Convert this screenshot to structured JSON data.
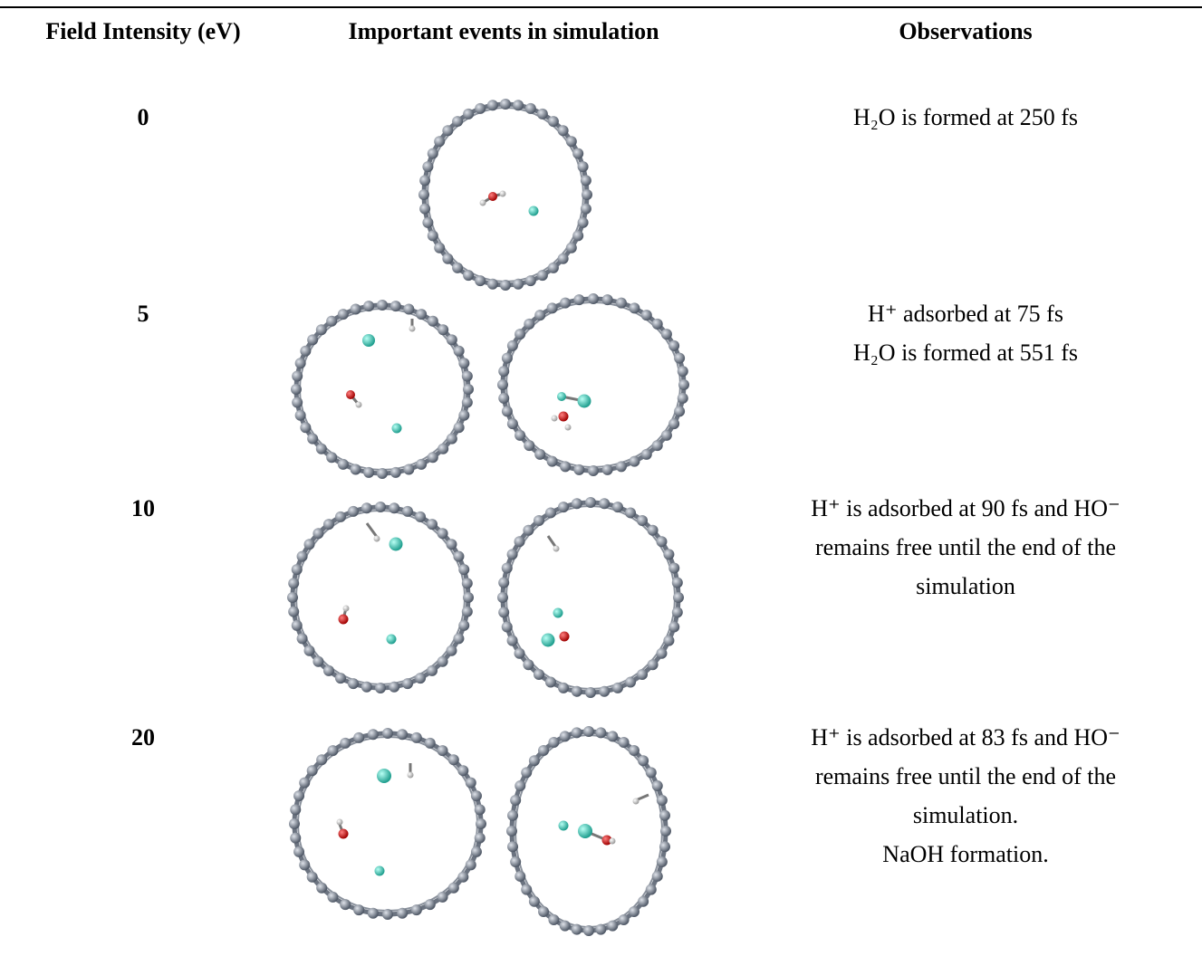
{
  "table": {
    "header": [
      "Field Intensity (eV)",
      "Important events in simulation",
      "Observations"
    ],
    "rows": [
      {
        "field": "0",
        "observations": [
          "H₂O is formed at 250 fs"
        ]
      },
      {
        "field": "5",
        "observations": [
          "H⁺ adsorbed at 75 fs",
          "H₂O is formed at 551 fs"
        ]
      },
      {
        "field": "10",
        "observations": [
          "H⁺ is adsorbed at 90 fs and HO⁻",
          "remains free until the end of the",
          "simulation"
        ]
      },
      {
        "field": "20",
        "observations": [
          "H⁺ is adsorbed at 83 fs and HO⁻",
          "remains free until the end of the",
          "simulation.",
          "NaOH formation."
        ]
      }
    ]
  }
}
